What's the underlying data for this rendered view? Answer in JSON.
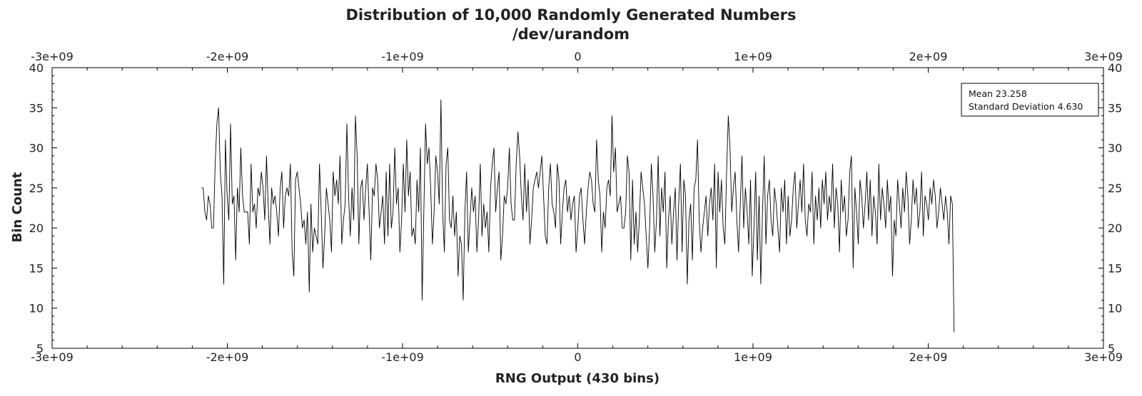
{
  "chart_data": {
    "type": "line",
    "title": "Distribution of 10,000 Randomly Generated Numbers",
    "subtitle": "/dev/urandom",
    "xlabel": "RNG Output (430 bins)",
    "ylabel": "Bin Count",
    "xlim": [
      -3000000000,
      3000000000
    ],
    "ylim": [
      5,
      40
    ],
    "x_ticks": [
      -3000000000,
      -2000000000,
      -1000000000,
      0,
      1000000000,
      2000000000,
      3000000000
    ],
    "x_tick_labels": [
      "-3e+09",
      "-2e+09",
      "-1e+09",
      "0",
      "1e+09",
      "2e+09",
      "3e+09"
    ],
    "y_ticks": [
      5,
      10,
      15,
      20,
      25,
      30,
      35,
      40
    ],
    "y_tick_labels": [
      "5",
      "10",
      "15",
      "20",
      "25",
      "30",
      "35",
      "40"
    ],
    "grid": false,
    "legend_placement": "top-right",
    "annotations": [
      "Mean 23.258",
      "Standard Deviation 4.630"
    ],
    "series": [
      {
        "x_start": -2147483648,
        "x_end": 2147483647,
        "values": [
          25,
          25,
          22,
          21,
          24,
          23,
          20,
          20,
          28,
          33,
          35,
          27,
          24,
          13,
          31,
          24,
          21,
          33,
          23,
          24,
          16,
          25,
          22,
          30,
          24,
          22,
          22,
          22,
          18,
          28,
          22,
          23,
          20,
          25,
          24,
          27,
          25,
          21,
          29,
          23,
          18,
          25,
          23,
          24,
          22,
          19,
          25,
          27,
          20,
          24,
          25,
          24,
          28,
          17,
          14,
          26,
          27,
          25,
          23,
          20,
          21,
          18,
          22,
          12,
          23,
          17,
          20,
          19,
          18,
          28,
          22,
          15,
          19,
          25,
          23,
          21,
          17,
          27,
          24,
          26,
          23,
          29,
          18,
          21,
          23,
          33,
          24,
          19,
          25,
          21,
          34,
          29,
          18,
          25,
          26,
          21,
          25,
          28,
          22,
          16,
          25,
          24,
          28,
          26,
          20,
          22,
          24,
          18,
          27,
          19,
          28,
          20,
          22,
          30,
          23,
          25,
          17,
          21,
          28,
          22,
          31,
          24,
          27,
          19,
          20,
          18,
          26,
          22,
          30,
          11,
          22,
          33,
          28,
          30,
          25,
          18,
          22,
          29,
          27,
          23,
          36,
          22,
          17,
          28,
          30,
          21,
          20,
          24,
          19,
          22,
          14,
          19,
          18,
          11,
          22,
          27,
          17,
          21,
          25,
          22,
          24,
          17,
          21,
          28,
          19,
          23,
          20,
          22,
          17,
          25,
          28,
          30,
          22,
          25,
          27,
          16,
          19,
          24,
          23,
          25,
          30,
          23,
          21,
          21,
          28,
          32,
          29,
          24,
          21,
          28,
          22,
          26,
          18,
          21,
          25,
          26,
          27,
          25,
          27,
          29,
          24,
          19,
          18,
          25,
          28,
          23,
          22,
          20,
          28,
          26,
          18,
          22,
          25,
          26,
          22,
          24,
          21,
          23,
          24,
          17,
          20,
          24,
          25,
          21,
          18,
          22,
          25,
          27,
          26,
          23,
          22,
          31,
          26,
          24,
          17,
          22,
          20,
          25,
          26,
          24,
          34,
          27,
          30,
          22,
          23,
          24,
          20,
          20,
          22,
          29,
          27,
          16,
          26,
          18,
          22,
          17,
          21,
          27,
          25,
          23,
          19,
          15,
          20,
          28,
          24,
          17,
          21,
          29,
          19,
          25,
          22,
          27,
          15,
          21,
          24,
          18,
          22,
          25,
          16,
          23,
          28,
          17,
          26,
          24,
          13,
          21,
          23,
          16,
          25,
          26,
          31,
          21,
          17,
          20,
          22,
          24,
          19,
          23,
          25,
          21,
          28,
          15,
          27,
          22,
          26,
          20,
          18,
          27,
          34,
          30,
          22,
          25,
          27,
          21,
          17,
          23,
          29,
          20,
          25,
          22,
          18,
          26,
          14,
          20,
          27,
          16,
          24,
          13,
          22,
          29,
          18,
          24,
          26,
          21,
          19,
          25,
          23,
          20,
          17,
          25,
          22,
          26,
          18,
          24,
          19,
          21,
          25,
          27,
          20,
          23,
          26,
          22,
          28,
          21,
          19,
          23,
          22,
          27,
          18,
          24,
          21,
          25,
          20,
          26,
          23,
          27,
          21,
          24,
          22,
          28,
          20,
          25,
          23,
          17,
          26,
          22,
          24,
          19,
          21,
          27,
          29,
          15,
          25,
          22,
          18,
          26,
          24,
          20,
          23,
          27,
          21,
          26,
          19,
          24,
          22,
          18,
          28,
          21,
          25,
          23,
          20,
          26,
          22,
          24,
          14,
          21,
          19,
          26,
          23,
          20,
          25,
          22,
          27,
          24,
          18,
          21,
          26,
          23,
          25,
          20,
          22,
          27,
          19,
          24,
          23,
          21,
          25,
          23,
          26,
          24,
          20,
          22,
          25,
          23,
          21,
          24,
          22,
          18,
          24,
          23,
          7
        ]
      }
    ]
  }
}
